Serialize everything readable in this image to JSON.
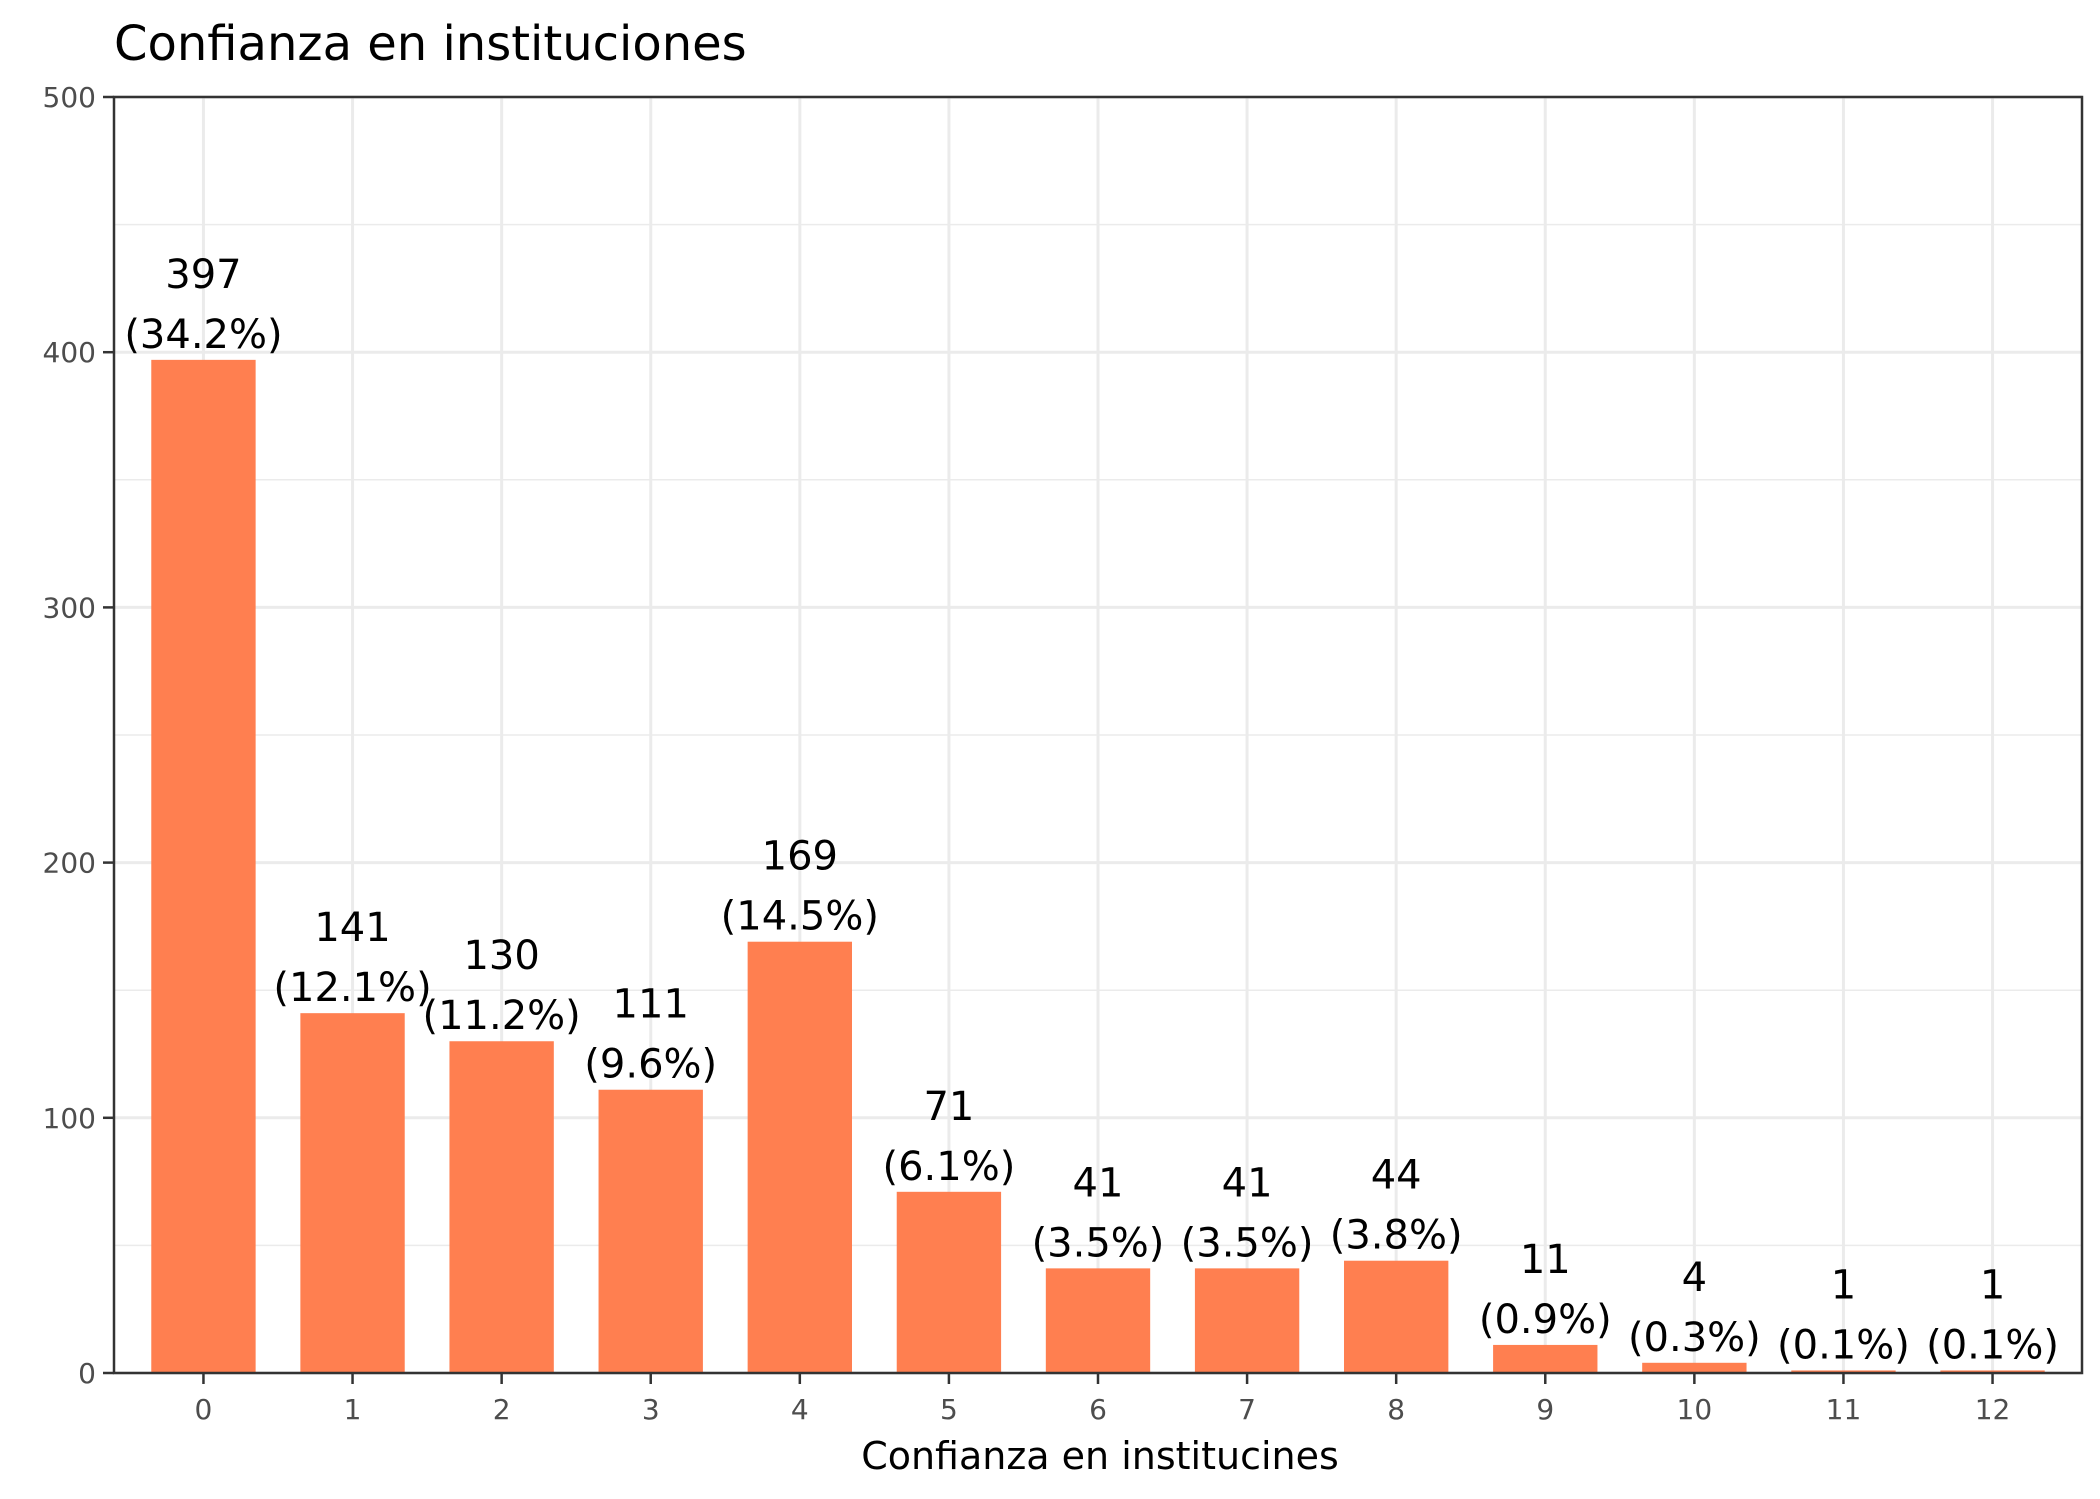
{
  "chart_data": {
    "type": "bar",
    "title": "Confianza en instituciones",
    "xlabel": "Confianza en institucines",
    "ylabel": "",
    "ylim": [
      0,
      500
    ],
    "yticks": [
      "0",
      "100",
      "200",
      "300",
      "400",
      "500"
    ],
    "ytick_values": [
      0,
      100,
      200,
      300,
      400,
      500
    ],
    "categories": [
      "0",
      "1",
      "2",
      "3",
      "4",
      "5",
      "6",
      "7",
      "8",
      "9",
      "10",
      "11",
      "12"
    ],
    "values": [
      397,
      141,
      130,
      111,
      169,
      71,
      41,
      41,
      44,
      11,
      4,
      1,
      1
    ],
    "count_labels": [
      "397",
      "141",
      "130",
      "111",
      "169",
      "71",
      "41",
      "41",
      "44",
      "11",
      "4",
      "1",
      "1"
    ],
    "percent_labels": [
      "(34.2%)",
      "(12.1%)",
      "(11.2%)",
      "(9.6%)",
      "(14.5%)",
      "(6.1%)",
      "(3.5%)",
      "(3.5%)",
      "(3.8%)",
      "(0.9%)",
      "(0.3%)",
      "(0.1%)",
      "(0.1%)"
    ],
    "bar_color": "#FF7F50",
    "grid": true,
    "legend": "none"
  }
}
